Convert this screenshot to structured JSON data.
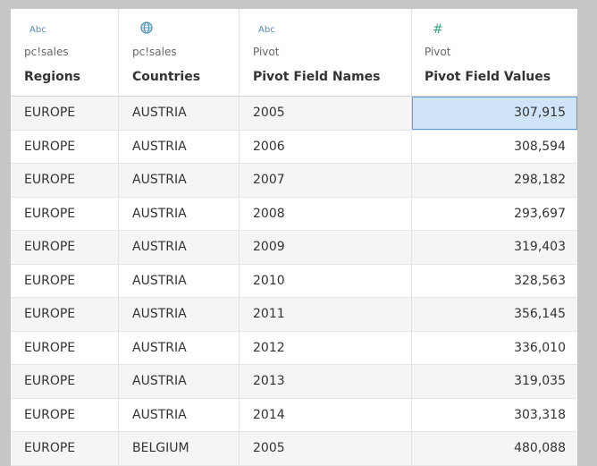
{
  "columns": [
    {
      "type_icon": "Abc",
      "icon_name": "string-type-icon",
      "source": "pc!sales",
      "name": "Regions"
    },
    {
      "type_icon": "⊕",
      "icon_name": "globe-icon",
      "source": "pc!sales",
      "name": "Countries"
    },
    {
      "type_icon": "Abc",
      "icon_name": "string-type-icon",
      "source": "Pivot",
      "name": "Pivot Field Names"
    },
    {
      "type_icon": "#",
      "icon_name": "number-type-icon",
      "source": "Pivot",
      "name": "Pivot Field Values"
    }
  ],
  "rows": [
    {
      "region": "EUROPE",
      "country": "AUSTRIA",
      "year": "2005",
      "value": "307,915"
    },
    {
      "region": "EUROPE",
      "country": "AUSTRIA",
      "year": "2006",
      "value": "308,594"
    },
    {
      "region": "EUROPE",
      "country": "AUSTRIA",
      "year": "2007",
      "value": "298,182"
    },
    {
      "region": "EUROPE",
      "country": "AUSTRIA",
      "year": "2008",
      "value": "293,697"
    },
    {
      "region": "EUROPE",
      "country": "AUSTRIA",
      "year": "2009",
      "value": "319,403"
    },
    {
      "region": "EUROPE",
      "country": "AUSTRIA",
      "year": "2010",
      "value": "328,563"
    },
    {
      "region": "EUROPE",
      "country": "AUSTRIA",
      "year": "2011",
      "value": "356,145"
    },
    {
      "region": "EUROPE",
      "country": "AUSTRIA",
      "year": "2012",
      "value": "336,010"
    },
    {
      "region": "EUROPE",
      "country": "AUSTRIA",
      "year": "2013",
      "value": "319,035"
    },
    {
      "region": "EUROPE",
      "country": "AUSTRIA",
      "year": "2014",
      "value": "303,318"
    },
    {
      "region": "EUROPE",
      "country": "BELGIUM",
      "year": "2005",
      "value": "480,088"
    }
  ],
  "selected": {
    "row": 0,
    "column": 3
  }
}
